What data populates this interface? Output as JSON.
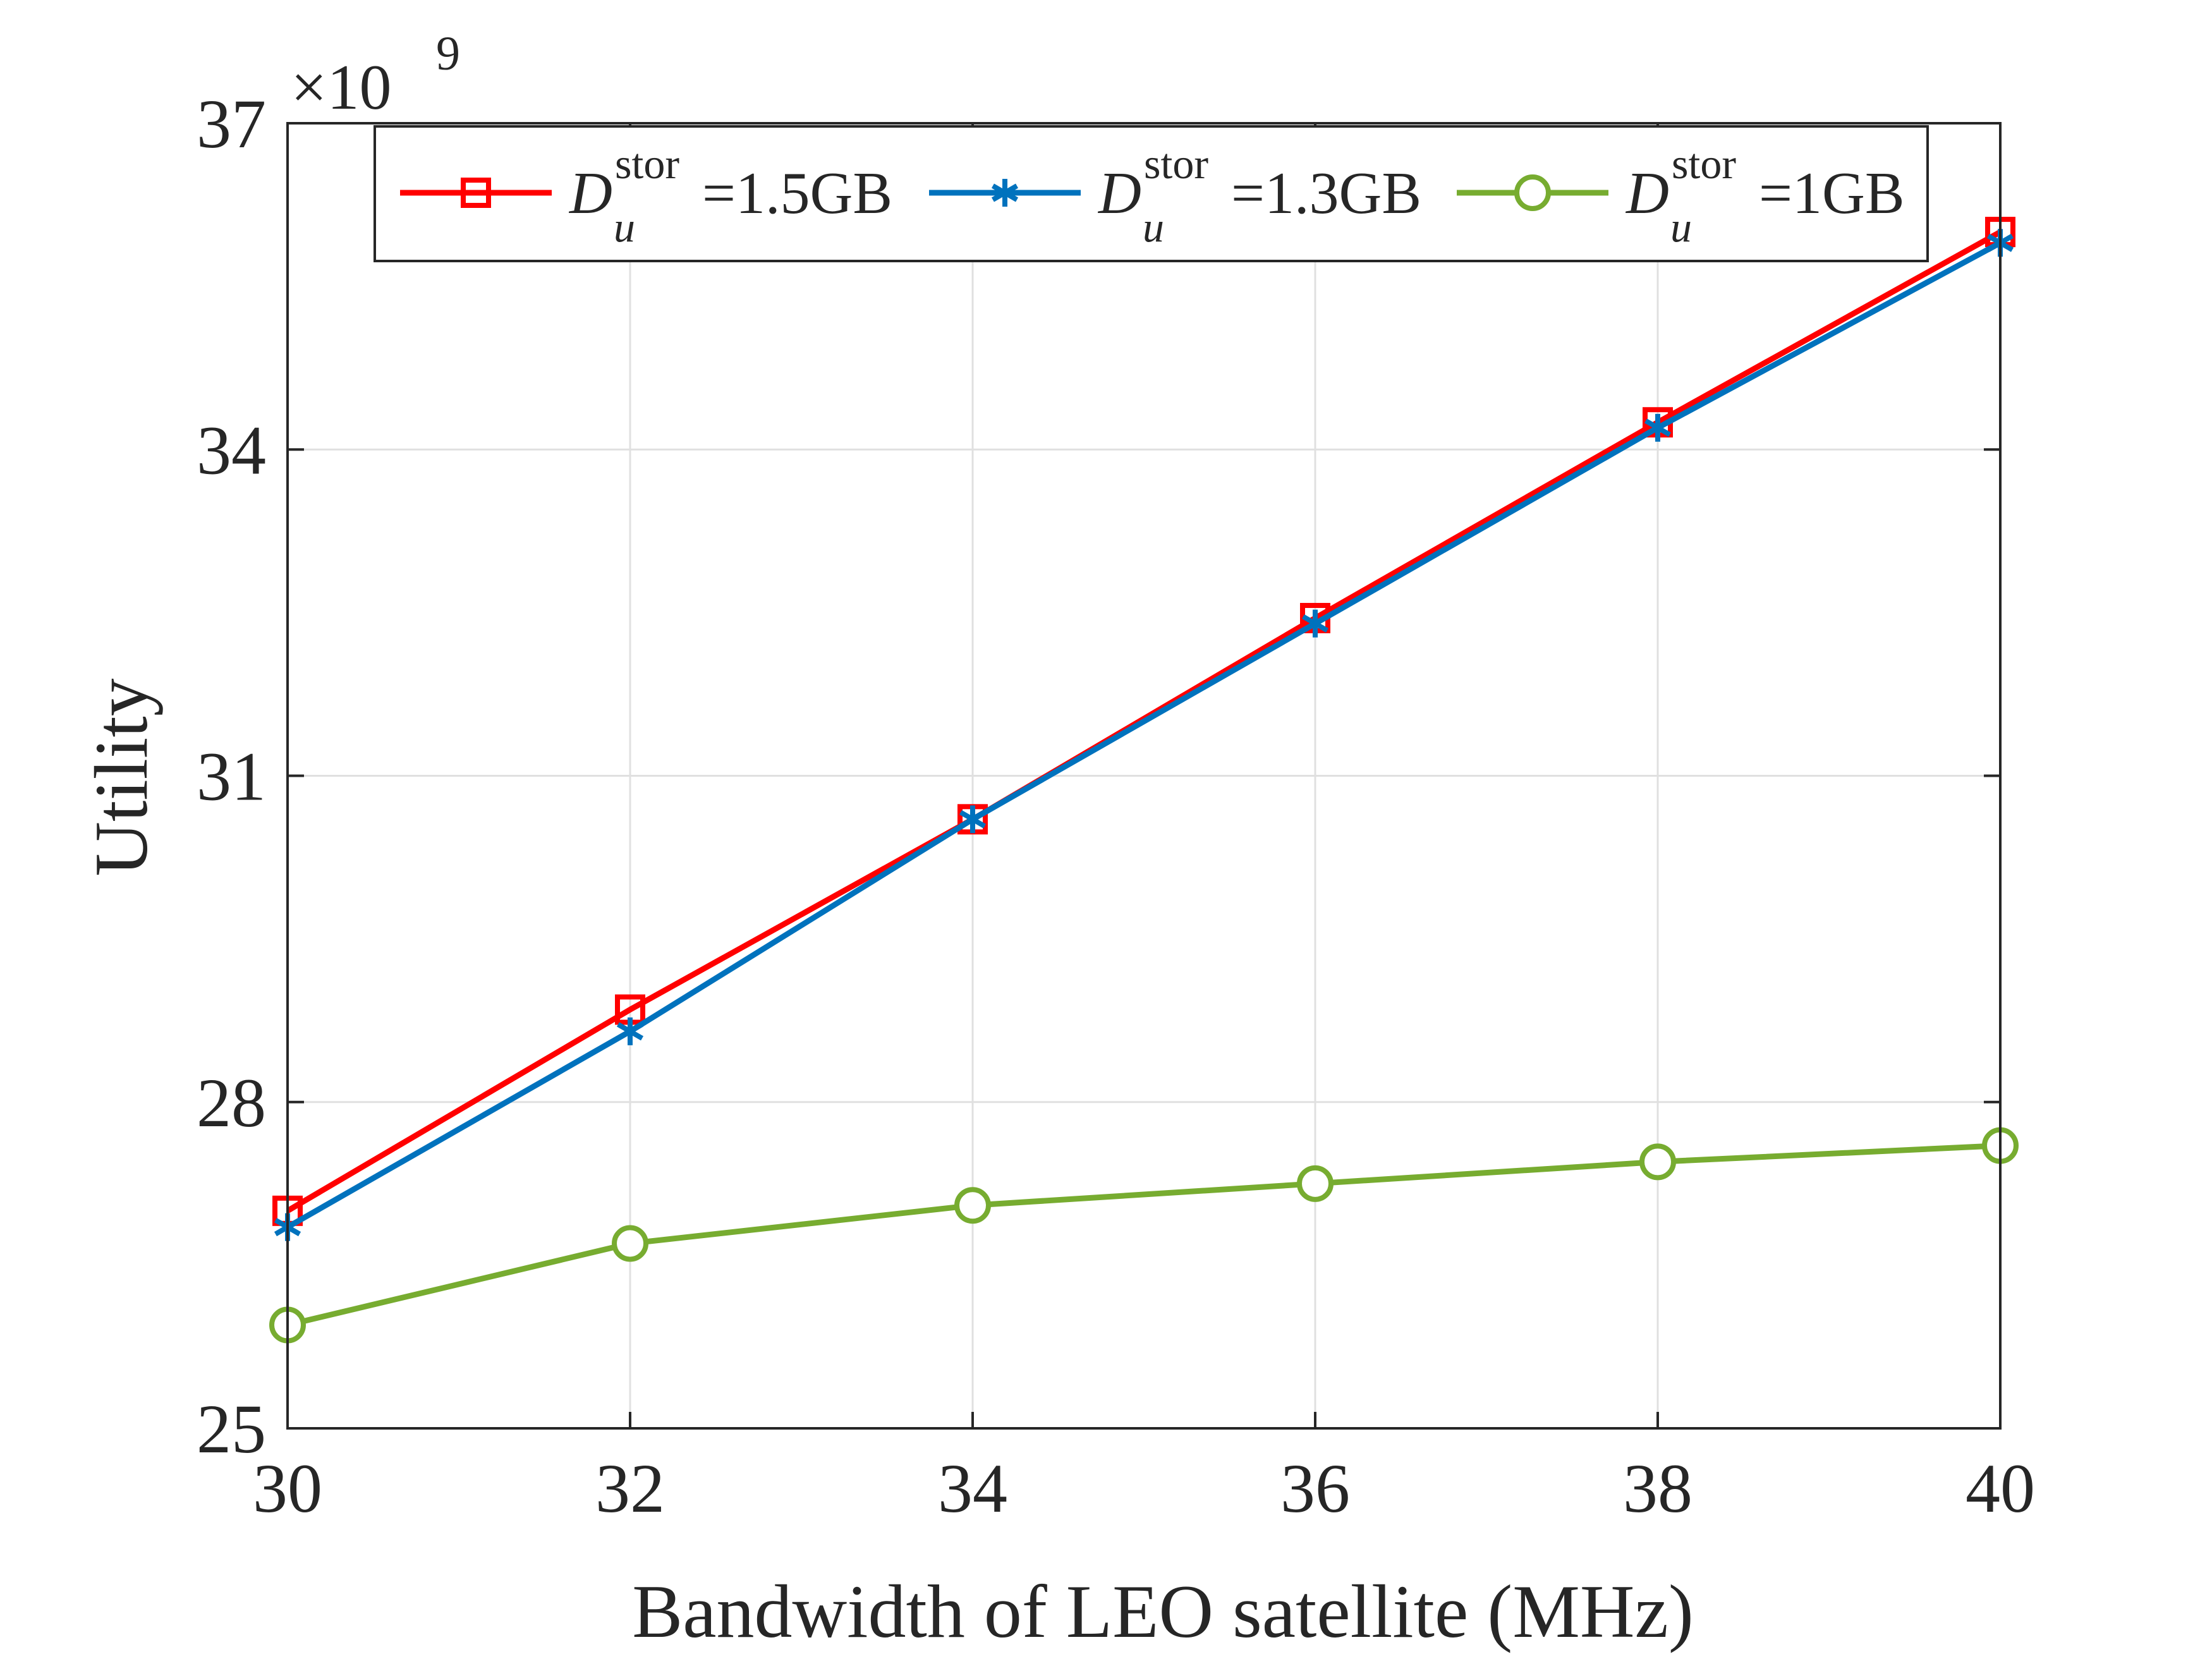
{
  "chart_data": {
    "type": "line",
    "title": "",
    "xlabel": "Bandwidth of LEO satellite (MHz)",
    "ylabel": "Utility",
    "x": [
      30,
      32,
      34,
      36,
      38,
      40
    ],
    "xlim": [
      30,
      40
    ],
    "ylim": [
      25,
      37
    ],
    "xticks": [
      "30",
      "32",
      "34",
      "36",
      "38",
      "40"
    ],
    "yticks": [
      "25",
      "28",
      "31",
      "34",
      "37"
    ],
    "exponent": {
      "base": "×10",
      "power": "9"
    },
    "grid": true,
    "legend_position": "top",
    "series": [
      {
        "name": "D_u^stor=1.5GB",
        "label_main": "D",
        "label_sup": "stor",
        "label_sub": "u",
        "label_value": "=1.5GB",
        "color": "#ff0000",
        "marker": "square",
        "values": [
          27.0,
          28.85,
          30.6,
          32.45,
          34.25,
          36.0
        ]
      },
      {
        "name": "D_u^stor=1.3GB",
        "label_main": "D",
        "label_sup": "stor",
        "label_sub": "u",
        "label_value": "=1.3GB",
        "color": "#0072bd",
        "marker": "asterisk",
        "values": [
          26.85,
          28.65,
          30.6,
          32.4,
          34.2,
          35.9
        ]
      },
      {
        "name": "D_u^stor=1GB",
        "label_main": "D",
        "label_sup": "stor",
        "label_sub": "u",
        "label_value": "=1GB",
        "color": "#77ac30",
        "marker": "circle",
        "values": [
          25.95,
          26.7,
          27.05,
          27.25,
          27.45,
          27.6
        ]
      }
    ]
  }
}
